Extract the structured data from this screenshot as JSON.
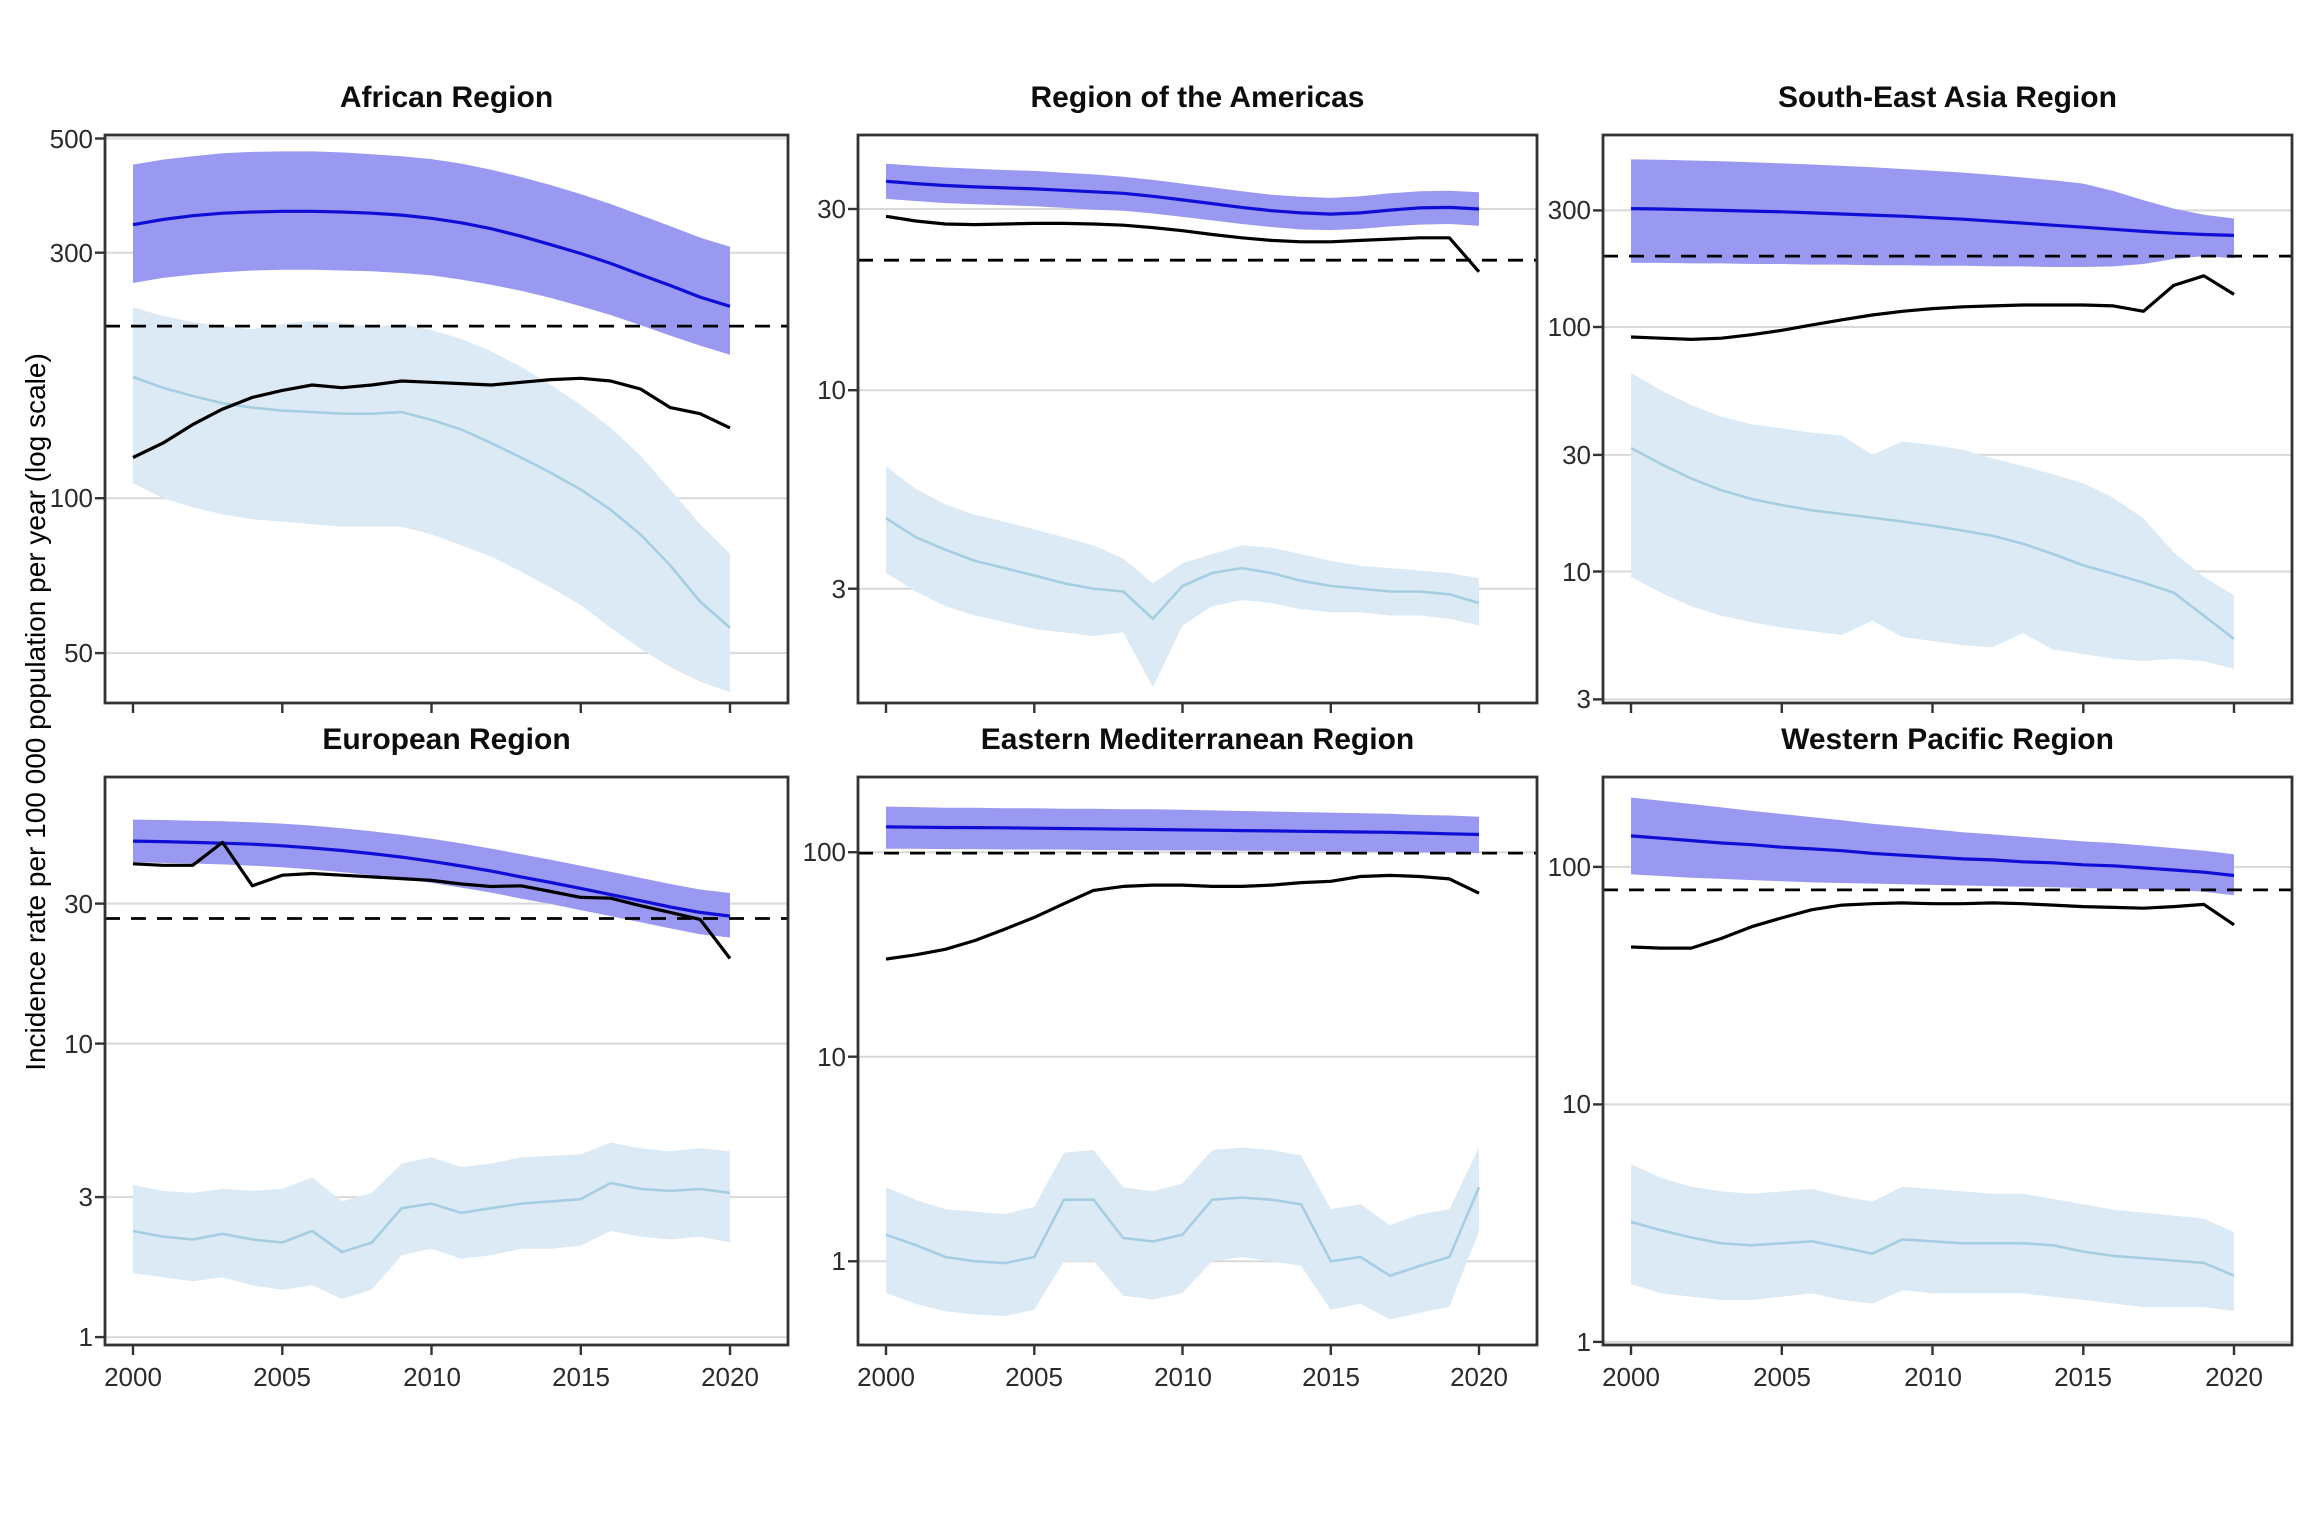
{
  "figure": {
    "y_axis_label": "Incidence rate per 100 000 population per year (log scale)",
    "x_tick_labels": [
      "2000",
      "2005",
      "2010",
      "2015",
      "2020"
    ],
    "x_tick_years": [
      2000,
      2005,
      2010,
      2015,
      2020
    ],
    "colors": {
      "blue_line": "#0E0ED6",
      "blue_ribbon": "#9999F2",
      "lightblue_line": "#A6CEE3",
      "lightblue_ribbon": "#DCEAF6",
      "black_line": "#000000",
      "dashed_reference": "#000000",
      "gridline": "#D9D9D9",
      "panel_border": "#333333",
      "tick_mark": "#333333"
    }
  },
  "chart_data": [
    {
      "type": "line",
      "title": "African Region",
      "x_start": 2000,
      "x_end": 2020,
      "x_step": 1,
      "ylim": [
        40,
        508
      ],
      "yticks": [
        500,
        300,
        100,
        50
      ],
      "dashed_reference": 216,
      "series": {
        "blue_line": [
          340,
          348,
          354,
          358,
          360,
          361,
          361,
          360,
          358,
          355,
          350,
          343,
          334,
          323,
          311,
          299,
          286,
          272,
          259,
          246,
          236
        ],
        "blue_ribbon_hi": [
          445,
          455,
          462,
          468,
          471,
          472,
          472,
          470,
          466,
          462,
          456,
          447,
          435,
          421,
          406,
          390,
          373,
          355,
          338,
          321,
          308
        ],
        "blue_ribbon_lo": [
          262,
          268,
          272,
          275,
          277,
          278,
          278,
          277,
          276,
          274,
          271,
          266,
          260,
          253,
          245,
          236,
          227,
          217,
          207,
          198,
          190
        ],
        "black_line": [
          120,
          128,
          139,
          149,
          157,
          162,
          166,
          164,
          166,
          169,
          168,
          167,
          166,
          168,
          170,
          171,
          169,
          163,
          150,
          146,
          137
        ],
        "lightblue_line": [
          172,
          164,
          158,
          153,
          150,
          148,
          147,
          146,
          146,
          147,
          142,
          136,
          128,
          120,
          112,
          104,
          95,
          85,
          74,
          63,
          56
        ],
        "lightblue_ribbon_hi": [
          235,
          226,
          220,
          216,
          213,
          218,
          221,
          219,
          215,
          218,
          212,
          204,
          193,
          180,
          166,
          152,
          137,
          121,
          104,
          89,
          78
        ],
        "lightblue_ribbon_lo": [
          107,
          100,
          96,
          93,
          91,
          90,
          89,
          88,
          88,
          88,
          85,
          81,
          77,
          72,
          67,
          62,
          56,
          51,
          47,
          44,
          42
        ]
      }
    },
    {
      "type": "line",
      "title": "Region of the Americas",
      "x_start": 2000,
      "x_end": 2020,
      "x_step": 1,
      "ylim": [
        1.5,
        47
      ],
      "yticks": [
        30,
        10,
        3
      ],
      "dashed_reference": 22,
      "series": {
        "blue_line": [
          35.5,
          35.0,
          34.6,
          34.3,
          34.1,
          33.9,
          33.6,
          33.3,
          33.0,
          32.4,
          31.7,
          31.0,
          30.3,
          29.7,
          29.3,
          29.1,
          29.3,
          29.8,
          30.2,
          30.3,
          30.0
        ],
        "blue_ribbon_hi": [
          39.5,
          39.0,
          38.6,
          38.3,
          38.0,
          37.8,
          37.4,
          37.0,
          36.5,
          35.8,
          35.0,
          34.2,
          33.4,
          32.7,
          32.3,
          32.1,
          32.4,
          33.0,
          33.4,
          33.5,
          33.2
        ],
        "blue_ribbon_lo": [
          31.9,
          31.5,
          31.1,
          30.9,
          30.7,
          30.5,
          30.2,
          29.9,
          29.7,
          29.2,
          28.6,
          28.0,
          27.4,
          26.9,
          26.5,
          26.4,
          26.6,
          27.0,
          27.3,
          27.4,
          27.1
        ],
        "black_line": [
          28.7,
          27.9,
          27.4,
          27.3,
          27.4,
          27.5,
          27.5,
          27.4,
          27.2,
          26.8,
          26.3,
          25.7,
          25.2,
          24.8,
          24.6,
          24.6,
          24.8,
          25.0,
          25.2,
          25.2,
          20.5
        ],
        "lightblue_line": [
          4.6,
          4.1,
          3.8,
          3.55,
          3.4,
          3.25,
          3.1,
          3.0,
          2.95,
          2.5,
          3.05,
          3.3,
          3.4,
          3.3,
          3.15,
          3.05,
          3.0,
          2.95,
          2.95,
          2.9,
          2.75
        ],
        "lightblue_ribbon_hi": [
          6.3,
          5.5,
          5.0,
          4.7,
          4.5,
          4.3,
          4.1,
          3.9,
          3.6,
          3.1,
          3.5,
          3.7,
          3.9,
          3.85,
          3.7,
          3.55,
          3.45,
          3.4,
          3.35,
          3.3,
          3.2
        ],
        "lightblue_ribbon_lo": [
          3.3,
          2.95,
          2.7,
          2.55,
          2.45,
          2.35,
          2.3,
          2.25,
          2.3,
          1.65,
          2.4,
          2.7,
          2.8,
          2.75,
          2.65,
          2.6,
          2.6,
          2.55,
          2.55,
          2.5,
          2.4
        ]
      }
    },
    {
      "type": "line",
      "title": "South-East Asia Region",
      "x_start": 2000,
      "x_end": 2020,
      "x_step": 1,
      "ylim": [
        2.9,
        610
      ],
      "yticks": [
        300,
        100,
        30,
        10,
        3
      ],
      "dashed_reference": 195,
      "series": {
        "blue_line": [
          305,
          304,
          302,
          300,
          298,
          296,
          293,
          290,
          287,
          284,
          280,
          276,
          271,
          266,
          261,
          256,
          251,
          246,
          242,
          239,
          237
        ],
        "blue_ribbon_hi": [
          485,
          483,
          480,
          476,
          472,
          467,
          462,
          456,
          450,
          443,
          436,
          428,
          419,
          409,
          398,
          386,
          360,
          330,
          305,
          288,
          278
        ],
        "blue_ribbon_lo": [
          183,
          183,
          182,
          182,
          181,
          181,
          180,
          180,
          179,
          179,
          178,
          178,
          177,
          177,
          176,
          176,
          177,
          181,
          190,
          195,
          191
        ],
        "black_line": [
          91,
          90,
          89,
          90,
          93,
          97,
          102,
          107,
          112,
          116,
          119,
          121,
          122,
          123,
          123,
          123,
          122,
          116,
          148,
          162,
          136
        ],
        "lightblue_line": [
          32,
          27.5,
          24,
          21.5,
          19.8,
          18.7,
          17.8,
          17.2,
          16.6,
          16.0,
          15.4,
          14.7,
          14.0,
          13.0,
          11.8,
          10.6,
          9.8,
          9.0,
          8.2,
          6.6,
          5.3
        ],
        "lightblue_ribbon_hi": [
          65,
          55,
          48,
          43,
          40,
          38.5,
          37,
          36,
          30,
          34,
          33,
          31.5,
          29,
          27,
          25,
          23,
          20,
          16.5,
          12,
          9.5,
          8.0
        ],
        "lightblue_ribbon_lo": [
          9.5,
          8.2,
          7.2,
          6.6,
          6.2,
          5.9,
          5.7,
          5.5,
          6.3,
          5.4,
          5.2,
          5.0,
          4.9,
          5.6,
          4.8,
          4.6,
          4.4,
          4.3,
          4.4,
          4.3,
          4.0
        ]
      }
    },
    {
      "type": "line",
      "title": "European Region",
      "x_start": 2000,
      "x_end": 2020,
      "x_step": 1,
      "ylim": [
        0.94,
        81
      ],
      "yticks": [
        30,
        10,
        3,
        1
      ],
      "dashed_reference": 26.7,
      "series": {
        "blue_line": [
          49,
          48.8,
          48.5,
          48.2,
          47.8,
          47.2,
          46.4,
          45.5,
          44.4,
          43.2,
          41.8,
          40.3,
          38.7,
          37.0,
          35.4,
          33.8,
          32.2,
          30.7,
          29.2,
          28.0,
          27.2
        ],
        "blue_ribbon_hi": [
          58,
          57.8,
          57.5,
          57.2,
          56.8,
          56.2,
          55.3,
          54.2,
          52.9,
          51.5,
          49.9,
          48.1,
          46.2,
          44.2,
          42.3,
          40.4,
          38.5,
          36.7,
          35.0,
          33.5,
          32.6
        ],
        "blue_ribbon_lo": [
          41.5,
          41.3,
          41.1,
          40.8,
          40.4,
          39.9,
          39.2,
          38.4,
          37.5,
          36.5,
          35.3,
          34.0,
          32.7,
          31.2,
          29.9,
          28.5,
          27.2,
          25.9,
          24.7,
          23.6,
          23.0
        ],
        "black_line": [
          41,
          40.5,
          40.5,
          48.5,
          34.5,
          37.5,
          38,
          37.5,
          37,
          36.5,
          36,
          35,
          34.3,
          34.5,
          33,
          31.5,
          31.3,
          29.5,
          28,
          26.5,
          19.5
        ],
        "lightblue_line": [
          2.3,
          2.2,
          2.15,
          2.25,
          2.15,
          2.1,
          2.3,
          1.95,
          2.1,
          2.75,
          2.85,
          2.65,
          2.75,
          2.85,
          2.9,
          2.95,
          3.35,
          3.2,
          3.15,
          3.2,
          3.1
        ],
        "lightblue_ribbon_hi": [
          3.3,
          3.15,
          3.1,
          3.2,
          3.15,
          3.2,
          3.5,
          2.9,
          3.1,
          3.9,
          4.1,
          3.8,
          3.9,
          4.1,
          4.15,
          4.2,
          4.6,
          4.4,
          4.3,
          4.4,
          4.3
        ],
        "lightblue_ribbon_lo": [
          1.65,
          1.6,
          1.55,
          1.6,
          1.5,
          1.45,
          1.5,
          1.35,
          1.45,
          1.9,
          2.0,
          1.85,
          1.9,
          2.0,
          2.0,
          2.05,
          2.3,
          2.2,
          2.15,
          2.2,
          2.1
        ]
      }
    },
    {
      "type": "line",
      "title": "Eastern Mediterranean Region",
      "x_start": 2000,
      "x_end": 2020,
      "x_step": 1,
      "ylim": [
        0.39,
        233
      ],
      "yticks": [
        100,
        10,
        1
      ],
      "dashed_reference": 99,
      "series": {
        "blue_line": [
          133,
          132.5,
          132,
          131.8,
          131.5,
          131,
          130.5,
          130,
          129.5,
          129,
          128.5,
          128,
          127.5,
          127,
          126.5,
          126,
          125.5,
          125,
          124,
          123,
          122
        ],
        "blue_ribbon_hi": [
          167,
          166,
          165,
          165,
          164,
          164,
          163,
          163,
          162,
          162,
          161,
          160,
          159,
          158,
          157,
          156,
          155,
          154,
          152,
          151,
          149
        ],
        "blue_ribbon_lo": [
          104,
          104,
          103.5,
          103.5,
          103,
          103,
          103,
          102.5,
          102.5,
          102,
          102,
          102,
          101.5,
          101.5,
          101,
          101,
          100.5,
          100.5,
          100,
          99.5,
          99
        ],
        "black_line": [
          30,
          31.5,
          33.5,
          37,
          42,
          48,
          56,
          65,
          68,
          69,
          69,
          68,
          68,
          69,
          71,
          72,
          76,
          77,
          76,
          74,
          63
        ],
        "lightblue_line": [
          1.35,
          1.2,
          1.05,
          1.0,
          0.98,
          1.05,
          2.0,
          2.0,
          1.3,
          1.25,
          1.35,
          2.0,
          2.05,
          2.0,
          1.9,
          1.0,
          1.05,
          0.85,
          0.95,
          1.05,
          2.3
        ],
        "lightblue_ribbon_hi": [
          2.3,
          2.0,
          1.8,
          1.75,
          1.7,
          1.85,
          3.4,
          3.5,
          2.3,
          2.2,
          2.4,
          3.5,
          3.6,
          3.5,
          3.3,
          1.8,
          1.9,
          1.5,
          1.7,
          1.8,
          3.6
        ],
        "lightblue_ribbon_lo": [
          0.7,
          0.62,
          0.57,
          0.55,
          0.54,
          0.58,
          1.0,
          1.0,
          0.68,
          0.65,
          0.7,
          1.0,
          1.05,
          1.0,
          0.95,
          0.58,
          0.62,
          0.52,
          0.56,
          0.6,
          1.4
        ]
      }
    },
    {
      "type": "line",
      "title": "Western Pacific Region",
      "x_start": 2000,
      "x_end": 2020,
      "x_step": 1,
      "ylim": [
        0.97,
        239
      ],
      "yticks": [
        100,
        10,
        1
      ],
      "dashed_reference": 80,
      "series": {
        "blue_line": [
          135,
          132,
          129,
          126,
          124,
          121,
          119,
          117,
          114,
          112,
          110,
          108,
          107,
          105,
          104,
          102,
          101,
          99,
          97,
          95,
          92
        ],
        "blue_ribbon_hi": [
          196,
          190,
          184,
          178,
          172,
          167,
          162,
          157,
          152,
          148,
          144,
          140,
          137,
          134,
          131,
          128,
          126,
          123,
          120,
          117,
          113
        ],
        "blue_ribbon_lo": [
          93,
          91.5,
          90,
          89,
          88,
          87,
          86,
          85.5,
          85,
          84.5,
          84,
          83.5,
          83,
          82.5,
          82,
          81.5,
          81,
          80.5,
          80,
          78.5,
          76
        ],
        "black_line": [
          46,
          45.5,
          45.5,
          50,
          56,
          61,
          66,
          69,
          70,
          70.5,
          70,
          70,
          70.5,
          70,
          69,
          68,
          67.5,
          67,
          68,
          69.5,
          57
        ],
        "lightblue_line": [
          3.2,
          2.95,
          2.75,
          2.6,
          2.55,
          2.6,
          2.65,
          2.5,
          2.35,
          2.7,
          2.65,
          2.6,
          2.6,
          2.6,
          2.55,
          2.4,
          2.3,
          2.25,
          2.2,
          2.15,
          1.9
        ],
        "lightblue_ribbon_hi": [
          5.6,
          4.9,
          4.5,
          4.3,
          4.2,
          4.3,
          4.4,
          4.1,
          3.9,
          4.5,
          4.4,
          4.3,
          4.2,
          4.2,
          4.0,
          3.8,
          3.6,
          3.5,
          3.4,
          3.3,
          2.9
        ],
        "lightblue_ribbon_lo": [
          1.75,
          1.6,
          1.55,
          1.5,
          1.5,
          1.55,
          1.6,
          1.5,
          1.45,
          1.65,
          1.6,
          1.6,
          1.6,
          1.6,
          1.55,
          1.5,
          1.45,
          1.4,
          1.4,
          1.4,
          1.35
        ]
      }
    }
  ]
}
